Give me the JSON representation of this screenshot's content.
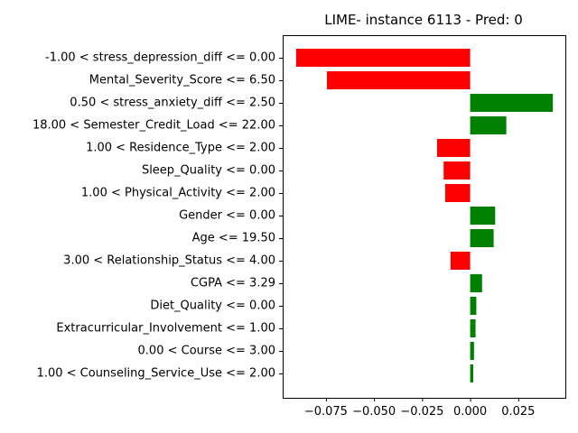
{
  "chart_data": {
    "type": "bar",
    "orientation": "horizontal",
    "title": "LIME- instance 6113 - Pred: 0",
    "xlabel": "",
    "ylabel": "",
    "xlim": [
      -0.0975,
      0.0495
    ],
    "xticks": [
      -0.075,
      -0.05,
      -0.025,
      0.0,
      0.025
    ],
    "xtick_labels": [
      "−0.075",
      "−0.050",
      "−0.025",
      "0.000",
      "0.025"
    ],
    "grid": false,
    "categories": [
      "-1.00 < stress_depression_diff <= 0.00",
      "Mental_Severity_Score <= 6.50",
      "0.50 < stress_anxiety_diff <= 2.50",
      "18.00 < Semester_Credit_Load <= 22.00",
      "1.00 < Residence_Type <= 2.00",
      "Sleep_Quality <= 0.00",
      "1.00 < Physical_Activity <= 2.00",
      "Gender <= 0.00",
      "Age <= 19.50",
      "3.00 < Relationship_Status <= 4.00",
      "CGPA <= 3.29",
      "Diet_Quality <= 0.00",
      "Extracurricular_Involvement <= 1.00",
      "0.00 < Course <= 3.00",
      "1.00 < Counseling_Service_Use <= 2.00"
    ],
    "values": [
      -0.0905,
      -0.0745,
      0.043,
      0.0188,
      -0.0172,
      -0.0138,
      -0.013,
      0.013,
      0.0122,
      -0.0102,
      0.0062,
      0.0032,
      0.0028,
      0.002,
      0.0016
    ],
    "colors": {
      "positive": "#008000",
      "negative": "#ff0000"
    }
  }
}
